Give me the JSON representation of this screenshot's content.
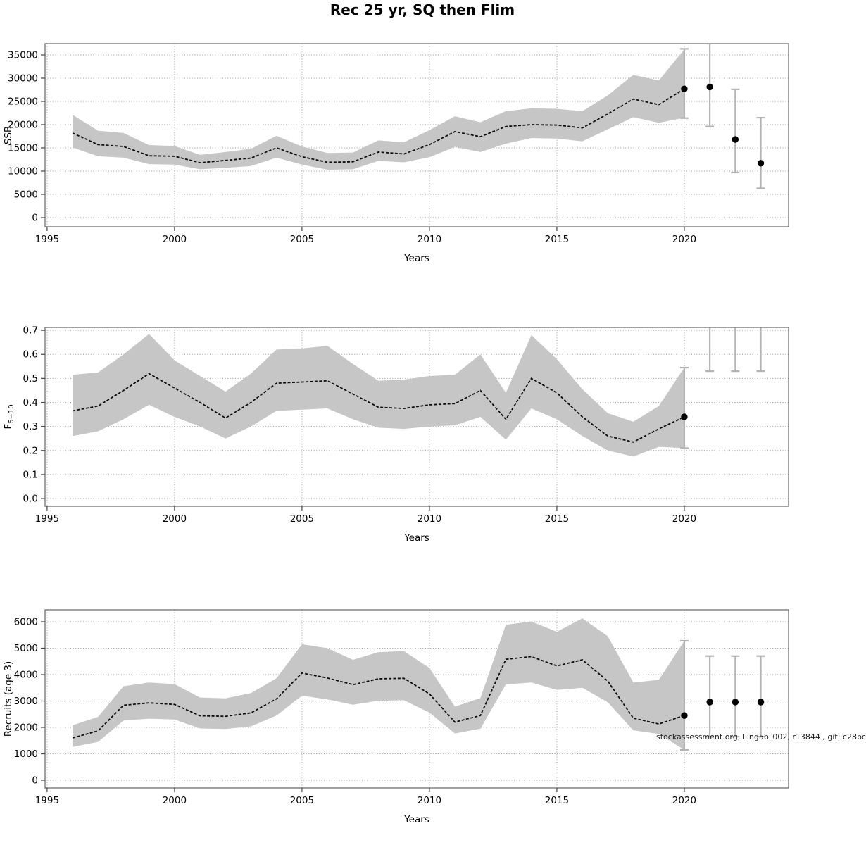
{
  "title": "Rec 25 yr, SQ then Flim",
  "watermark": "stockassessment.org, Ling5b_002, r13844 , git: c28bc",
  "colors": {
    "ribbon": "#c6c6c6",
    "estimate_line": "#0d0d0d",
    "dot": "#000000",
    "error_bar": "#b3b3b3",
    "grid": "#999999",
    "frame": "#7a7a7a",
    "text": "#000000"
  },
  "chart_data": [
    {
      "type": "area",
      "name": "ssb",
      "ylabel": "SSB",
      "xlabel": "Years",
      "grid": "dotted",
      "legend": "none",
      "xlim": [
        1994.92,
        2024.09
      ],
      "ylim": [
        -1970,
        37420
      ],
      "xticks": {
        "values": [
          1995,
          2000,
          2005,
          2010,
          2015,
          2020
        ],
        "labels": [
          "1995",
          "2000",
          "2005",
          "2010",
          "2015",
          "2020"
        ]
      },
      "yticks": {
        "values": [
          0,
          5000,
          10000,
          15000,
          20000,
          25000,
          30000,
          35000
        ],
        "labels": [
          "0",
          "5000",
          "10000",
          "15000",
          "20000",
          "25000",
          "30000",
          "35000"
        ]
      },
      "x": [
        1996,
        1997,
        1998,
        1999,
        2000,
        2001,
        2002,
        2003,
        2004,
        2005,
        2006,
        2007,
        2008,
        2009,
        2010,
        2011,
        2012,
        2013,
        2014,
        2015,
        2016,
        2017,
        2018,
        2019,
        2020
      ],
      "series": [
        {
          "name": "estimate",
          "values": [
            18200,
            15700,
            15300,
            13300,
            13200,
            11800,
            12300,
            12800,
            15000,
            13100,
            11900,
            12000,
            14100,
            13700,
            15700,
            18500,
            17400,
            19600,
            20000,
            19900,
            19300,
            22300,
            25500,
            24300,
            27700
          ]
        },
        {
          "name": "ci_low",
          "values": [
            15100,
            13200,
            12900,
            11500,
            11400,
            10400,
            10700,
            11100,
            12900,
            11400,
            10300,
            10400,
            12200,
            11900,
            13000,
            15200,
            14100,
            15900,
            17100,
            17000,
            16400,
            19000,
            21600,
            20400,
            21500
          ]
        },
        {
          "name": "ci_high",
          "values": [
            22100,
            18700,
            18200,
            15600,
            15400,
            13500,
            14100,
            14800,
            17600,
            15300,
            13900,
            14000,
            16600,
            16200,
            18800,
            21800,
            20500,
            22900,
            23500,
            23400,
            22900,
            26300,
            30700,
            29500,
            36200
          ]
        }
      ],
      "points": [
        {
          "year": 2020,
          "est": 27700,
          "lo": 21400,
          "hi": 36300
        },
        {
          "year": 2021,
          "est": 28100,
          "lo": 19600,
          "hi_above_axis": true
        },
        {
          "year": 2022,
          "est": 16800,
          "lo": 9700,
          "hi": 27600
        },
        {
          "year": 2023,
          "est": 11700,
          "lo": 6300,
          "hi": 21500
        }
      ]
    },
    {
      "type": "area",
      "name": "fishing-mortality",
      "ylabel": "F_{6−10}",
      "xlabel": "Years",
      "grid": "dotted",
      "legend": "none",
      "xlim": [
        1994.92,
        2024.09
      ],
      "ylim": [
        -0.032,
        0.712
      ],
      "xticks": {
        "values": [
          1995,
          2000,
          2005,
          2010,
          2015,
          2020
        ],
        "labels": [
          "1995",
          "2000",
          "2005",
          "2010",
          "2015",
          "2020"
        ]
      },
      "yticks": {
        "values": [
          0.0,
          0.1,
          0.2,
          0.3,
          0.4,
          0.5,
          0.6,
          0.7
        ],
        "labels": [
          "0.0",
          "0.1",
          "0.2",
          "0.3",
          "0.4",
          "0.5",
          "0.6",
          "0.7"
        ]
      },
      "x": [
        1996,
        1997,
        1998,
        1999,
        2000,
        2001,
        2002,
        2003,
        2004,
        2005,
        2006,
        2007,
        2008,
        2009,
        2010,
        2011,
        2012,
        2013,
        2014,
        2015,
        2016,
        2017,
        2018,
        2019,
        2020
      ],
      "series": [
        {
          "name": "estimate",
          "values": [
            0.365,
            0.385,
            0.45,
            0.52,
            0.46,
            0.4,
            0.335,
            0.4,
            0.48,
            0.485,
            0.49,
            0.435,
            0.38,
            0.375,
            0.39,
            0.395,
            0.45,
            0.33,
            0.5,
            0.44,
            0.34,
            0.26,
            0.235,
            0.29,
            0.34
          ]
        },
        {
          "name": "ci_low",
          "values": [
            0.26,
            0.28,
            0.33,
            0.39,
            0.34,
            0.3,
            0.25,
            0.3,
            0.365,
            0.37,
            0.375,
            0.33,
            0.295,
            0.29,
            0.3,
            0.305,
            0.34,
            0.245,
            0.375,
            0.33,
            0.26,
            0.2,
            0.175,
            0.215,
            0.21
          ]
        },
        {
          "name": "ci_high",
          "values": [
            0.515,
            0.525,
            0.6,
            0.685,
            0.575,
            0.51,
            0.445,
            0.52,
            0.62,
            0.625,
            0.635,
            0.56,
            0.49,
            0.495,
            0.51,
            0.515,
            0.6,
            0.44,
            0.68,
            0.58,
            0.455,
            0.355,
            0.32,
            0.385,
            0.545
          ]
        }
      ],
      "points": [
        {
          "year": 2020,
          "est": 0.34,
          "lo": 0.21,
          "hi": 0.545
        },
        {
          "year": 2021,
          "est_above_axis": true,
          "lo": 0.53,
          "hi_above_axis": true
        },
        {
          "year": 2022,
          "est_above_axis": true,
          "lo": 0.53,
          "hi_above_axis": true
        },
        {
          "year": 2023,
          "est_above_axis": true,
          "lo": 0.53,
          "hi_above_axis": true
        }
      ]
    },
    {
      "type": "area",
      "name": "recruits",
      "ylabel": "Recruits (age 3)",
      "xlabel": "Years",
      "grid": "dotted",
      "legend": "none",
      "xlim": [
        1994.92,
        2024.09
      ],
      "ylim": [
        -293,
        6453
      ],
      "xticks": {
        "values": [
          1995,
          2000,
          2005,
          2010,
          2015,
          2020
        ],
        "labels": [
          "1995",
          "2000",
          "2005",
          "2010",
          "2015",
          "2020"
        ]
      },
      "yticks": {
        "values": [
          0,
          1000,
          2000,
          3000,
          4000,
          5000,
          6000
        ],
        "labels": [
          "0",
          "1000",
          "2000",
          "3000",
          "4000",
          "5000",
          "6000"
        ]
      },
      "x": [
        1996,
        1997,
        1998,
        1999,
        2000,
        2001,
        2002,
        2003,
        2004,
        2005,
        2006,
        2007,
        2008,
        2009,
        2010,
        2011,
        2012,
        2013,
        2014,
        2015,
        2016,
        2017,
        2018,
        2019,
        2020
      ],
      "series": [
        {
          "name": "estimate",
          "values": [
            1600,
            1870,
            2840,
            2930,
            2870,
            2440,
            2420,
            2550,
            3080,
            4060,
            3870,
            3620,
            3840,
            3860,
            3270,
            2200,
            2450,
            4580,
            4680,
            4330,
            4560,
            3750,
            2350,
            2130,
            2450
          ]
        },
        {
          "name": "ci_low",
          "values": [
            1260,
            1450,
            2260,
            2330,
            2300,
            1960,
            1940,
            2040,
            2450,
            3200,
            3060,
            2860,
            3010,
            3030,
            2560,
            1770,
            1950,
            3630,
            3700,
            3420,
            3500,
            2950,
            1890,
            1750,
            1150
          ]
        },
        {
          "name": "ci_high",
          "values": [
            2080,
            2400,
            3560,
            3700,
            3640,
            3130,
            3100,
            3300,
            3860,
            5150,
            5000,
            4560,
            4850,
            4890,
            4250,
            2790,
            3110,
            5890,
            6010,
            5620,
            6130,
            5450,
            3700,
            3800,
            5280
          ]
        }
      ],
      "points": [
        {
          "year": 2020,
          "est": 2450,
          "lo": 1150,
          "hi": 5280
        },
        {
          "year": 2021,
          "est": 2960,
          "lo": 1650,
          "hi": 4700
        },
        {
          "year": 2022,
          "est": 2960,
          "lo": 1650,
          "hi": 4700
        },
        {
          "year": 2023,
          "est": 2960,
          "lo": 1650,
          "hi": 4700
        }
      ]
    }
  ]
}
